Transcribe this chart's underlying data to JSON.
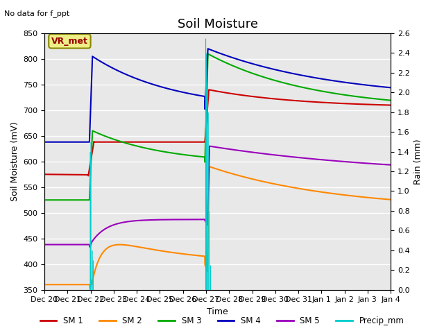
{
  "title": "Soil Moisture",
  "top_left_text": "No data for f_ppt",
  "box_label": "VR_met",
  "xlabel": "Time",
  "ylabel_left": "Soil Moisture (mV)",
  "ylabel_right": "Rain (mm)",
  "ylim_left": [
    350,
    850
  ],
  "ylim_right": [
    0.0,
    2.6
  ],
  "bg_color": "#e8e8e8",
  "fig_color": "#ffffff",
  "grid_color": "#ffffff",
  "colors": {
    "SM1": "#cc0000",
    "SM2": "#ff8800",
    "SM3": "#00aa00",
    "SM4": "#0000bb",
    "SM5": "#9900bb",
    "Precip": "#00cccc"
  },
  "x_tick_labels": [
    "Dec 20",
    "Dec 21",
    "Dec 22",
    "Dec 23",
    "Dec 24",
    "Dec 25",
    "Dec 26",
    "Dec 27",
    "Dec 28",
    "Dec 29",
    "Dec 30",
    "Dec 31",
    "Jan 1",
    "Jan 2",
    "Jan 3",
    "Jan 4"
  ],
  "legend_labels": [
    "SM 1",
    "SM 2",
    "SM 3",
    "SM 4",
    "SM 5",
    "Precip_mm"
  ],
  "n_days": 15,
  "n_pts": 3000
}
